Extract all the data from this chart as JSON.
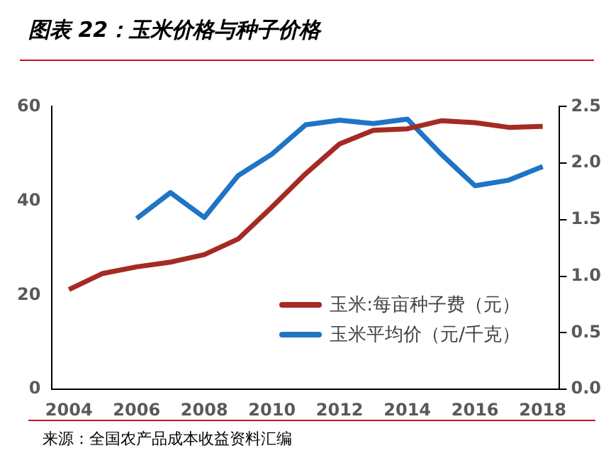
{
  "chart_data": {
    "type": "line",
    "title": "图表 22：玉米价格与种子价格",
    "categories": [
      "2004",
      null,
      "2006",
      null,
      "2008",
      null,
      "2010",
      null,
      "2012",
      null,
      "2014",
      null,
      "2016",
      null,
      "2018"
    ],
    "series": [
      {
        "name": "玉米:每亩种子费（元）",
        "color": "#a52a24",
        "values": [
          21.2,
          24.6,
          26.0,
          27.0,
          28.6,
          31.9,
          38.7,
          45.8,
          52.1,
          55.0,
          55.3,
          57.0,
          56.6,
          55.6,
          55.8
        ]
      },
      {
        "name": "玉米平均价（元/千克）",
        "color": "#1f74c4",
        "axis": "y2",
        "values": [
          null,
          null,
          1.51,
          1.74,
          1.52,
          1.89,
          2.08,
          2.34,
          2.38,
          2.35,
          2.39,
          2.08,
          1.8,
          1.85,
          1.97
        ]
      }
    ],
    "ylim": [
      0,
      60
    ],
    "yticks": [
      0,
      20,
      40,
      60
    ],
    "y2lim": [
      0,
      2.5
    ],
    "y2ticks": [
      {
        "value": 0,
        "label": "0.0"
      },
      {
        "value": 0.5,
        "label": "0.5"
      },
      {
        "value": 1,
        "label": "1.0"
      },
      {
        "value": 1.5,
        "label": "1.5"
      },
      {
        "value": 2,
        "label": "2.0"
      },
      {
        "value": 2.5,
        "label": "2.5"
      }
    ],
    "grid": false,
    "legend": "bottom right",
    "marker": "none",
    "line_style": "solid",
    "annotations": [
      "来源：全国农产品成本收益资料汇编"
    ]
  }
}
